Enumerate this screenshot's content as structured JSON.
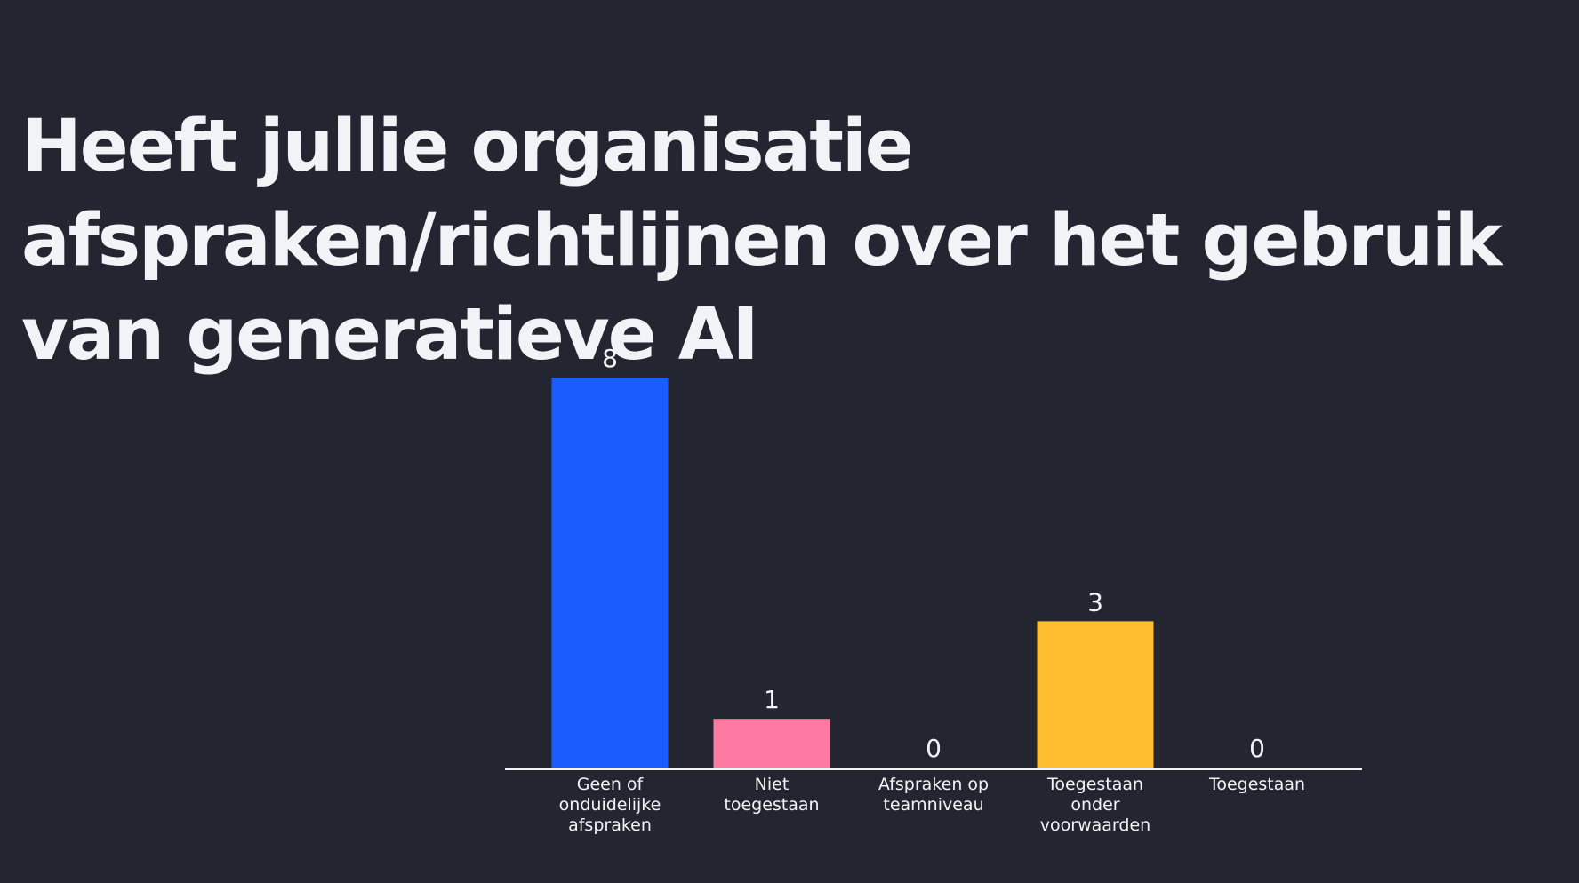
{
  "title": "Heeft jullie organisatie afspraken/richtlijnen over het gebruik van generatieve AI",
  "chart_data": {
    "type": "bar",
    "title": "Heeft jullie organisatie afspraken/richtlijnen over het gebruik van generatieve AI",
    "categories": [
      [
        "Geen of",
        "onduidelijke",
        "afspraken"
      ],
      [
        "Niet",
        "toegestaan"
      ],
      [
        "Afspraken op",
        "teamniveau"
      ],
      [
        "Toegestaan",
        "onder",
        "voorwaarden"
      ],
      [
        "Toegestaan"
      ]
    ],
    "values": [
      8,
      1,
      0,
      3,
      0
    ],
    "colors": [
      "#1a5cff",
      "#ff7aa2",
      "#2e7dff",
      "#ffbe30",
      "#9ad0ff"
    ],
    "axis_color": "#f2f3f7",
    "ylim": [
      0,
      8
    ],
    "grid": false,
    "data_labels": true
  }
}
